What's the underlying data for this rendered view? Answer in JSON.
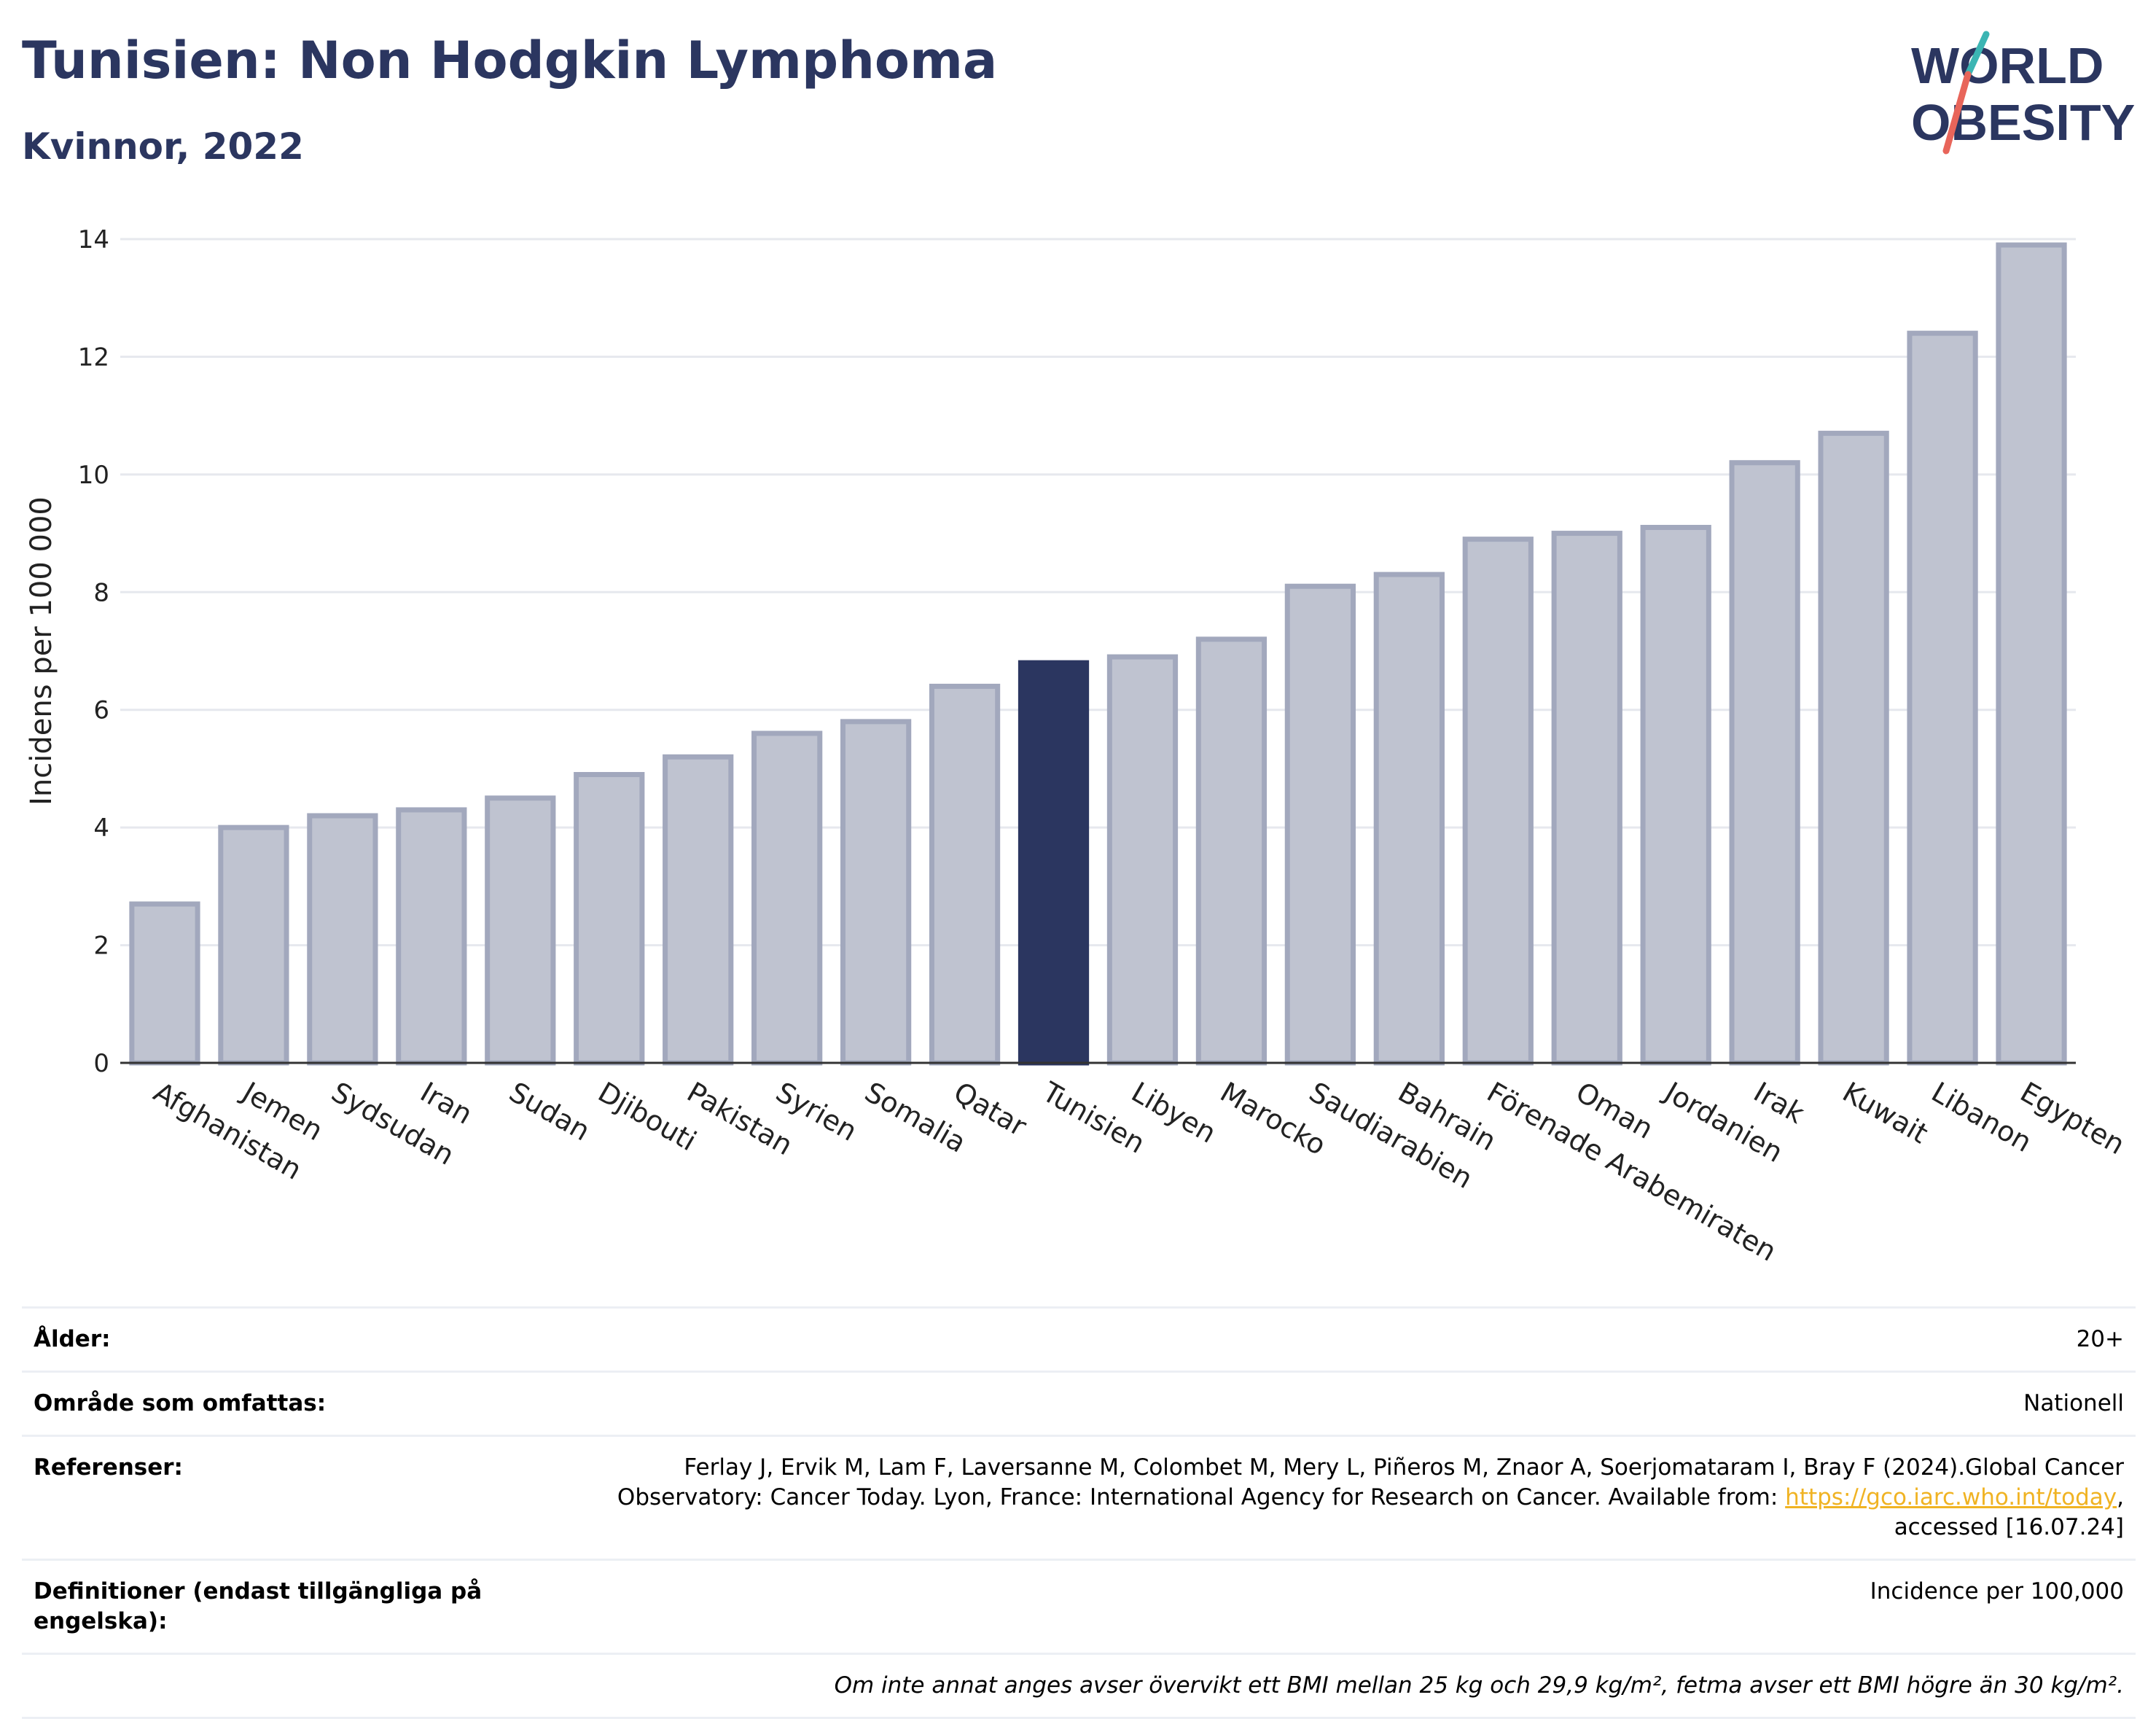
{
  "header": {
    "title": "Tunisien: Non Hodgkin Lymphoma",
    "subtitle": "Kvinnor, 2022",
    "logo_line1": "WORLD",
    "logo_line2": "OBESITY"
  },
  "colors": {
    "highlight_bar": "#2b3660",
    "other_bar_fill": "#bfc3d0",
    "other_bar_stroke": "#a2a8bd",
    "title": "#2b3660",
    "logo_teal": "#3bb5b3",
    "logo_coral": "#e8655a",
    "link": "#f0b323"
  },
  "chart_data": {
    "type": "bar",
    "ylabel": "Incidens per 100 000",
    "ylim": [
      0,
      14
    ],
    "yticks": [
      0,
      2,
      4,
      6,
      8,
      10,
      12,
      14
    ],
    "highlight": "Tunisien",
    "categories": [
      "Afghanistan",
      "Jemen",
      "Sydsudan",
      "Iran",
      "Sudan",
      "Djibouti",
      "Pakistan",
      "Syrien",
      "Somalia",
      "Qatar",
      "Tunisien",
      "Libyen",
      "Marocko",
      "Saudiarabien",
      "Bahrain",
      "Förenade Arabemiraten",
      "Oman",
      "Jordanien",
      "Irak",
      "Kuwait",
      "Libanon",
      "Egypten"
    ],
    "values": [
      2.7,
      4.0,
      4.2,
      4.3,
      4.5,
      4.9,
      5.2,
      5.6,
      5.8,
      6.4,
      6.8,
      6.9,
      7.2,
      8.1,
      8.3,
      8.9,
      9.0,
      9.1,
      10.2,
      10.7,
      12.4,
      13.9
    ],
    "grid": true
  },
  "info": {
    "age_label": "Ålder:",
    "age_value": "20+",
    "area_label": "Område som omfattas:",
    "area_value": "Nationell",
    "refs_label": "Referenser:",
    "refs_text1": "Ferlay J, Ervik M, Lam F, Laversanne M, Colombet M, Mery L, Piñeros M, Znaor A, Soerjomataram I, Bray F (2024).Global Cancer",
    "refs_text2": "Observatory: Cancer Today. Lyon, France: International Agency for Research on Cancer. Available from: ",
    "refs_link": "https://gco.iarc.who.int/today",
    "refs_text3": "accessed [16.07.24]",
    "defs_label": "Definitioner (endast tillgängliga på engelska):",
    "defs_value": "Incidence per 100,000",
    "note": "Om inte annat anges avser övervikt ett BMI mellan 25 kg och 29,9 kg/m², fetma avser ett BMI högre än 30 kg/m²."
  }
}
